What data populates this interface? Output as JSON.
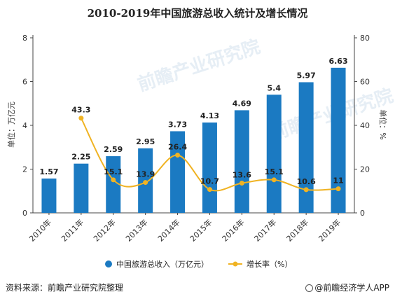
{
  "title": "2010-2019年中国旅游总收入统计及增长情况",
  "footer": {
    "source": "资料来源：前瞻产业研究院整理",
    "brand": "@前瞻经济学人APP"
  },
  "watermark": "前瞻产业研究院",
  "colors": {
    "bar": "#1b7ac2",
    "line": "#f0b323",
    "text": "#333333"
  },
  "chart_data": {
    "type": "bar",
    "categories": [
      "2010年",
      "2011年",
      "2012年",
      "2013年",
      "2014年",
      "2015年",
      "2016年",
      "2017年",
      "2018年",
      "2019年"
    ],
    "series": [
      {
        "name": "中国旅游总收入（万亿元）",
        "type": "bar",
        "axis": "left",
        "values": [
          1.57,
          2.25,
          2.59,
          2.95,
          3.73,
          4.13,
          4.69,
          5.4,
          5.97,
          6.63
        ]
      },
      {
        "name": "增长率（%）",
        "type": "line",
        "axis": "right",
        "values": [
          null,
          43.3,
          15.1,
          13.9,
          26.4,
          10.7,
          13.6,
          15.1,
          10.6,
          11
        ]
      }
    ],
    "ylabel_left": "单位：万亿元",
    "ylabel_right": "单位：%",
    "ylim_left": [
      0,
      8
    ],
    "ylim_right": [
      0,
      80
    ],
    "yticks_left": [
      0,
      2,
      4,
      6,
      8
    ],
    "yticks_right": [
      0,
      20,
      40,
      60,
      80
    ],
    "legend_position": "bottom",
    "grid": false
  }
}
